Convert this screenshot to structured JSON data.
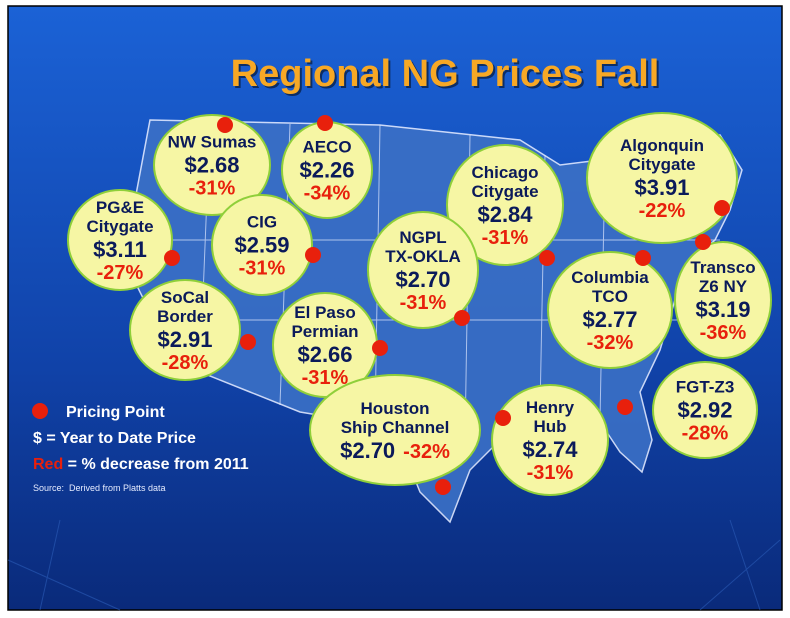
{
  "title": "Regional NG Prices Fall",
  "hubs": [
    {
      "name": [
        "NW Sumas"
      ],
      "price": "$2.68",
      "change": "-31%"
    },
    {
      "name": [
        "AECO"
      ],
      "price": "$2.26",
      "change": "-34%"
    },
    {
      "name": [
        "PG&E",
        "Citygate"
      ],
      "price": "$3.11",
      "change": "-27%"
    },
    {
      "name": [
        "CIG"
      ],
      "price": "$2.59",
      "change": "-31%"
    },
    {
      "name": [
        "Chicago",
        "Citygate"
      ],
      "price": "$2.84",
      "change": "-31%"
    },
    {
      "name": [
        "Algonquin",
        "Citygate"
      ],
      "price": "$3.91",
      "change": "-22%"
    },
    {
      "name": [
        "NGPL",
        "TX-OKLA"
      ],
      "price": "$2.70",
      "change": "-31%"
    },
    {
      "name": [
        "SoCal",
        "Border"
      ],
      "price": "$2.91",
      "change": "-28%"
    },
    {
      "name": [
        "El Paso",
        "Permian"
      ],
      "price": "$2.66",
      "change": "-31%"
    },
    {
      "name": [
        "Columbia",
        "TCO"
      ],
      "price": "$2.77",
      "change": "-32%"
    },
    {
      "name": [
        "Transco",
        "Z6 NY"
      ],
      "price": "$3.19",
      "change": "-36%"
    },
    {
      "name": [
        "Houston",
        "Ship Channel"
      ],
      "price": "$2.70",
      "change": "-32%"
    },
    {
      "name": [
        "Henry",
        "Hub"
      ],
      "price": "$2.74",
      "change": "-31%"
    },
    {
      "name": [
        "FGT-Z3"
      ],
      "price": "$2.92",
      "change": "-28%"
    }
  ],
  "legend": {
    "point": "Pricing Point",
    "price": "$ = Year to Date Price",
    "red": "Red",
    "decrease": " = % decrease from 2011"
  },
  "source": "Source:  Derived from Platts data"
}
